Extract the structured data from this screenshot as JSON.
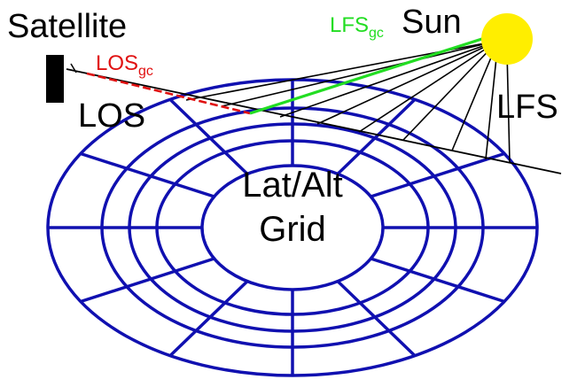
{
  "labels": {
    "satellite": "Satellite",
    "los": "LOS",
    "los_gc_main": "LOS",
    "los_gc_sub": "gc",
    "lfs_gc_main": "LFS",
    "lfs_gc_sub": "gc",
    "sun": "Sun",
    "lfs": "LFS",
    "grid_line1": "Lat/Alt",
    "grid_line2": "Grid"
  },
  "colors": {
    "grid": "#1010b0",
    "los_gc": "#e01010",
    "lfs_gc": "#22dd22",
    "sun": "#ffee00",
    "rays": "#000000",
    "satellite": "#000000"
  }
}
